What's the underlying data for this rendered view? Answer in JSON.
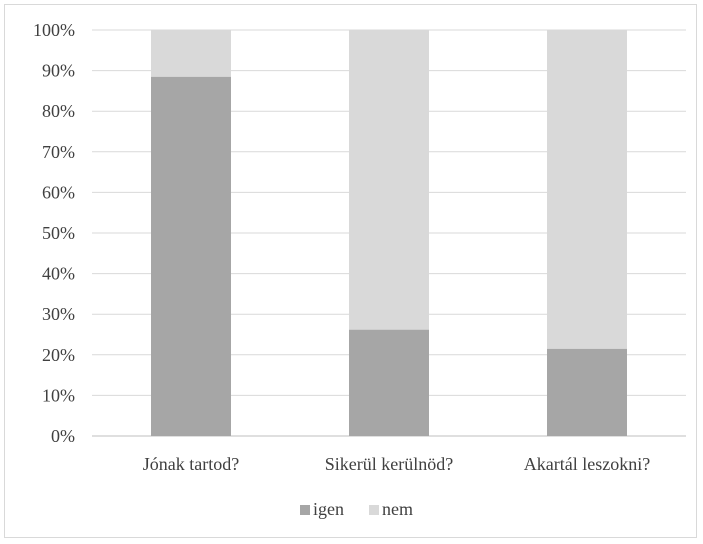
{
  "chart_data": {
    "type": "bar",
    "stacked": true,
    "percent": true,
    "categories": [
      "Jónak tartod?",
      "Sikerül kerülnöd?",
      "Akartál leszokni?"
    ],
    "series": [
      {
        "name": "igen",
        "values": [
          88.5,
          26.2,
          21.5
        ],
        "color": "#a6a6a6"
      },
      {
        "name": "nem",
        "values": [
          11.5,
          73.8,
          78.5
        ],
        "color": "#d9d9d9"
      }
    ],
    "yticks": [
      "0%",
      "10%",
      "20%",
      "30%",
      "40%",
      "50%",
      "60%",
      "70%",
      "80%",
      "90%",
      "100%"
    ],
    "ylim": [
      0,
      100
    ],
    "grid": true,
    "legend_position": "bottom",
    "gridline_color": "#d9d9d9",
    "axis_color": "#bfbfbf"
  }
}
